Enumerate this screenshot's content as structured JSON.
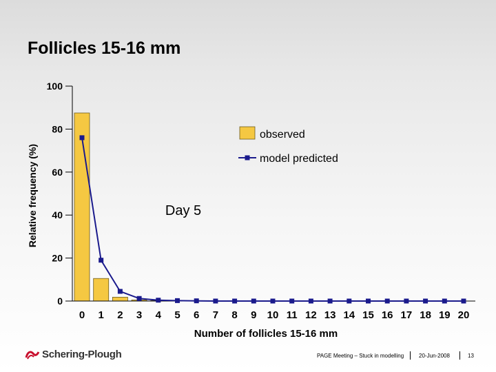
{
  "slide": {
    "title": "Follicles 15-16 mm",
    "annotation": "Day 5"
  },
  "chart_data": {
    "type": "bar",
    "title": "Follicles 15-16 mm",
    "xlabel": "Number of follicles 15-16 mm",
    "ylabel": "Relative frequency (%)",
    "ylim": [
      0,
      100
    ],
    "yticks": [
      0,
      20,
      40,
      60,
      80,
      100
    ],
    "categories": [
      "0",
      "1",
      "2",
      "3",
      "4",
      "5",
      "6",
      "7",
      "8",
      "9",
      "10",
      "11",
      "12",
      "13",
      "14",
      "15",
      "16",
      "17",
      "18",
      "19",
      "20"
    ],
    "series": [
      {
        "name": "observed",
        "kind": "bar",
        "color": "#F5C842",
        "values": [
          87.5,
          10.5,
          1.8,
          0.5,
          0.2,
          0,
          0,
          0,
          0,
          0,
          0,
          0,
          0,
          0,
          0,
          0,
          0,
          0,
          0,
          0,
          0
        ]
      },
      {
        "name": "model predicted",
        "kind": "line",
        "color": "#1A1A8C",
        "values": [
          76,
          19,
          4.5,
          1.2,
          0.4,
          0.2,
          0.1,
          0,
          0,
          0,
          0,
          0,
          0,
          0,
          0,
          0,
          0,
          0,
          0,
          0,
          0
        ]
      }
    ],
    "legend_position": "top-right",
    "grid": false
  },
  "footer": {
    "logo_text": "Schering-Plough",
    "meeting": "PAGE Meeting – Stuck in modelling",
    "date": "20-Jun-2008",
    "page": "13"
  }
}
